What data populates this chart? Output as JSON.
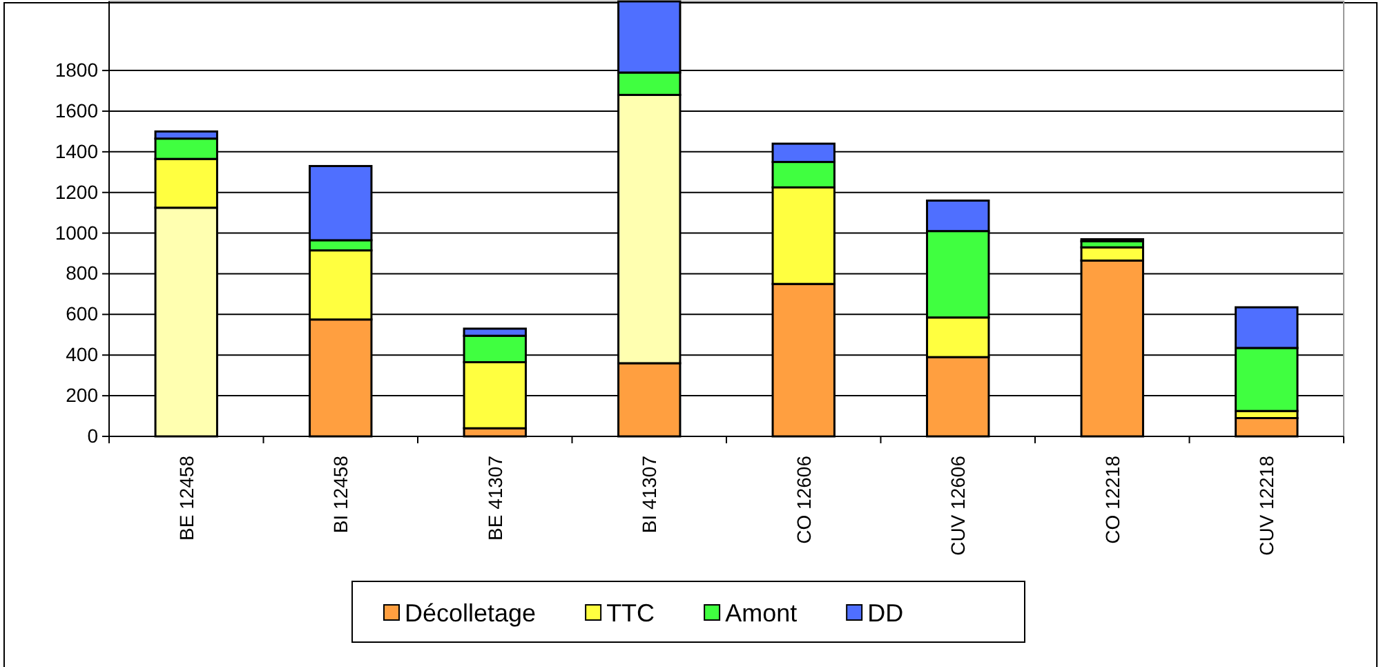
{
  "chart_data": {
    "type": "bar",
    "stacked": true,
    "categories": [
      "BE 12458",
      "BI 12458",
      "BE 41307",
      "BI 41307",
      "CO 12606",
      "CUV 12606",
      "CO 12218",
      "CUV 12218"
    ],
    "series": [
      {
        "name": "Décolletage",
        "color": "#ff9f40",
        "colors": [
          "#ffffb0",
          "#ff9f40",
          "#ff9f40",
          "#ff9f40",
          "#ff9f40",
          "#ff9f40",
          "#ff9f40",
          "#ff9f40"
        ],
        "values": [
          1125,
          575,
          40,
          360,
          750,
          390,
          865,
          90
        ]
      },
      {
        "name": "TTC",
        "color": "#ffff40",
        "colors": [
          "#ffff40",
          "#ffff40",
          "#ffff40",
          "#ffffb0",
          "#ffff40",
          "#ffff40",
          "#ffff40",
          "#ffff40"
        ],
        "values": [
          240,
          340,
          325,
          1320,
          475,
          195,
          65,
          35
        ]
      },
      {
        "name": "Amont",
        "color": "#40ff40",
        "values": [
          100,
          50,
          130,
          110,
          125,
          425,
          30,
          310
        ]
      },
      {
        "name": "DD",
        "color": "#4f6fff",
        "values": [
          35,
          365,
          35,
          350,
          90,
          150,
          10,
          200
        ]
      }
    ],
    "ylim": [
      0,
      2140
    ],
    "yticks": [
      0,
      200,
      400,
      600,
      800,
      1000,
      1200,
      1400,
      1600,
      1800
    ],
    "grid": "y",
    "legend": "bottom"
  }
}
